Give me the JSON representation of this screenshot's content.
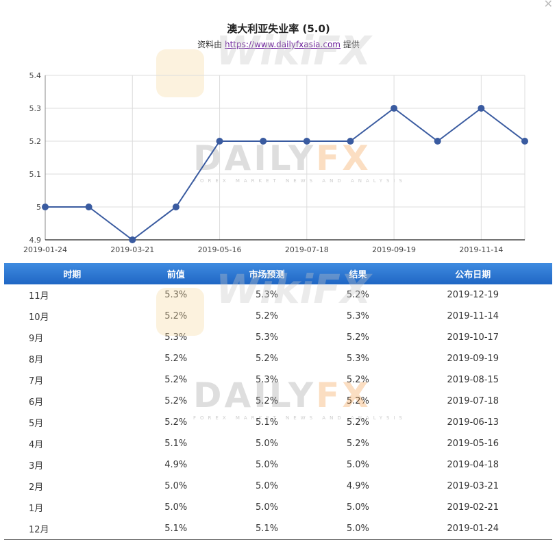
{
  "header": {
    "title": "澳大利亚失业率 (5.0)",
    "source_prefix": "资料由",
    "source_link": "https://www.dailyfxasia.com",
    "source_suffix": "提供",
    "close_icon": "close-icon"
  },
  "watermarks": {
    "dailyfx_left": "DAILY",
    "dailyfx_right": "FX",
    "dailyfx_sub": "FOREX MARKET NEWS AND ANALYSIS",
    "wikifx": "WikiFX"
  },
  "colors": {
    "line": "#3a5ba0",
    "header_blue": "#2a75d4",
    "accent_orange": "#f28c28"
  },
  "chart_data": {
    "type": "line",
    "title": "澳大利亚失业率 (5.0)",
    "xlabel": "",
    "ylabel": "",
    "ylim": [
      4.9,
      5.4
    ],
    "yticks": [
      "4.9",
      "5",
      "5.1",
      "5.2",
      "5.3",
      "5.4"
    ],
    "ytick_values": [
      4.9,
      5.0,
      5.1,
      5.2,
      5.3,
      5.4
    ],
    "x": [
      "2019-01-24",
      "2019-02-21",
      "2019-03-21",
      "2019-04-18",
      "2019-05-16",
      "2019-06-13",
      "2019-07-18",
      "2019-08-15",
      "2019-09-19",
      "2019-10-17",
      "2019-11-14",
      "2019-12-19"
    ],
    "xtick_labels": [
      "2019-01-24",
      "2019-03-21",
      "2019-05-16",
      "2019-07-18",
      "2019-09-19",
      "2019-11-14"
    ],
    "xtick_indices": [
      0,
      2,
      4,
      6,
      8,
      10
    ],
    "series": [
      {
        "values": [
          5.0,
          5.0,
          4.9,
          5.0,
          5.2,
          5.2,
          5.2,
          5.2,
          5.3,
          5.2,
          5.3,
          5.2
        ]
      }
    ],
    "grid": true,
    "legend": "none"
  },
  "table": {
    "headers": [
      "时期",
      "前值",
      "市场预测",
      "结果",
      "公布日期"
    ],
    "rows": [
      [
        "11月",
        "5.3%",
        "5.3%",
        "5.2%",
        "2019-12-19"
      ],
      [
        "10月",
        "5.2%",
        "5.2%",
        "5.3%",
        "2019-11-14"
      ],
      [
        "9月",
        "5.3%",
        "5.3%",
        "5.2%",
        "2019-10-17"
      ],
      [
        "8月",
        "5.2%",
        "5.2%",
        "5.3%",
        "2019-09-19"
      ],
      [
        "7月",
        "5.2%",
        "5.3%",
        "5.2%",
        "2019-08-15"
      ],
      [
        "6月",
        "5.2%",
        "5.2%",
        "5.2%",
        "2019-07-18"
      ],
      [
        "5月",
        "5.2%",
        "5.1%",
        "5.2%",
        "2019-06-13"
      ],
      [
        "4月",
        "5.1%",
        "5.0%",
        "5.2%",
        "2019-05-16"
      ],
      [
        "3月",
        "4.9%",
        "5.0%",
        "5.0%",
        "2019-04-18"
      ],
      [
        "2月",
        "5.0%",
        "5.0%",
        "4.9%",
        "2019-03-21"
      ],
      [
        "1月",
        "5.0%",
        "5.0%",
        "5.0%",
        "2019-02-21"
      ],
      [
        "12月",
        "5.1%",
        "5.1%",
        "5.0%",
        "2019-01-24"
      ]
    ]
  }
}
